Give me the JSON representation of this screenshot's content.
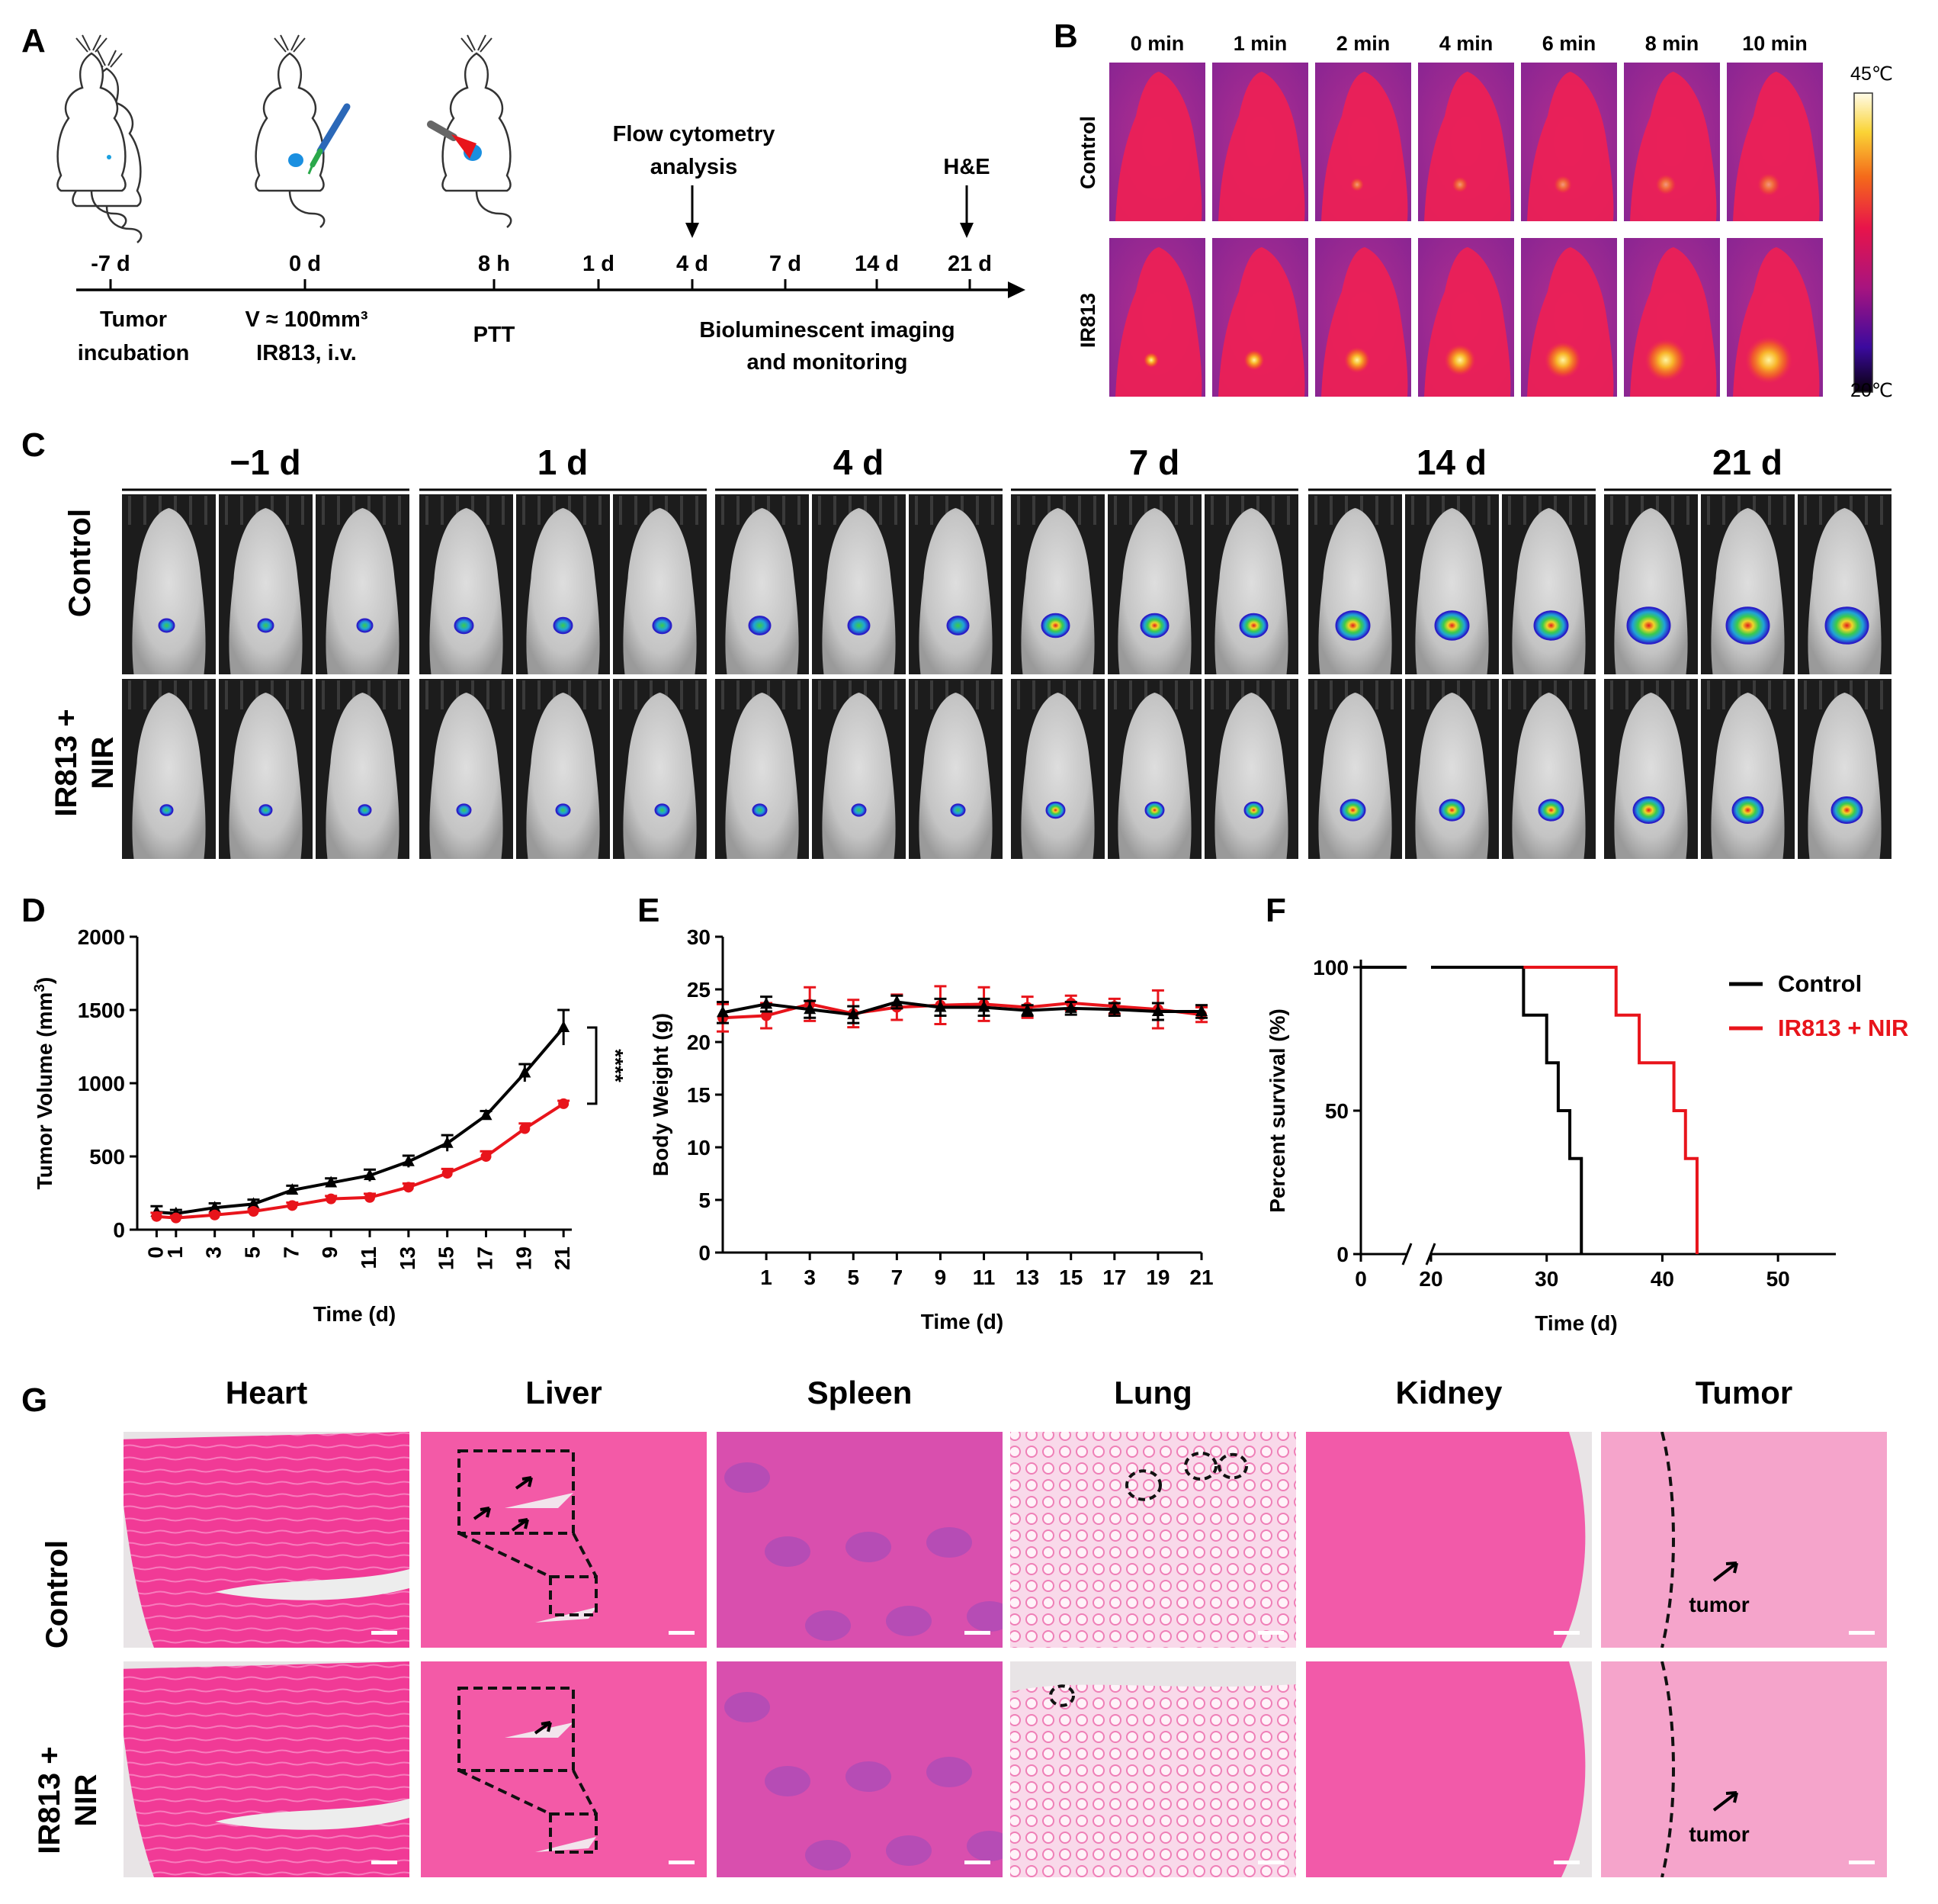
{
  "panels": {
    "A": "A",
    "B": "B",
    "C": "C",
    "D": "D",
    "E": "E",
    "F": "F",
    "G": "G"
  },
  "timeline": {
    "ticks": [
      "-7 d",
      "0 d",
      "8 h",
      "1 d",
      "4 d",
      "7 d",
      "14 d",
      "21 d"
    ],
    "tumor_incubation": [
      "Tumor",
      "incubation"
    ],
    "injection": [
      "V ≈ 100mm³",
      "IR813, i.v."
    ],
    "ptt": "PTT",
    "flow": [
      "Flow cytometry",
      "analysis"
    ],
    "he": "H&E",
    "biolum": [
      "Bioluminescent imaging",
      "and monitoring"
    ]
  },
  "thermal": {
    "times": [
      "0 min",
      "1 min",
      "2 min",
      "4 min",
      "6 min",
      "8 min",
      "10 min"
    ],
    "rows": [
      "Control",
      "IR813"
    ],
    "scale_max": "45℃",
    "scale_min": "20℃"
  },
  "biolum": {
    "days": [
      "−1 d",
      "1 d",
      "4 d",
      "7 d",
      "14 d",
      "21 d"
    ],
    "rows": [
      [
        "Control"
      ],
      [
        "IR813 +",
        "NIR"
      ]
    ]
  },
  "colors": {
    "control": "#000000",
    "treated": "#e8141b",
    "he_pink": "#f04c9e",
    "he_bg": "#f5a9cf"
  },
  "chart_data": [
    {
      "panel": "D",
      "type": "line",
      "title": "",
      "xlabel": "Time (d)",
      "ylabel": "Tumor Volume (mm3)",
      "ylabel_main": "Tumor Volume (mm",
      "ylabel_sup": "3",
      "ylabel_end": ")",
      "xlim": [
        -1,
        23
      ],
      "ylim": [
        0,
        2000
      ],
      "y_ticks": [
        0,
        500,
        1000,
        1500,
        2000
      ],
      "x": [
        0,
        1,
        3,
        5,
        7,
        9,
        11,
        13,
        15,
        17,
        19,
        21
      ],
      "series": [
        {
          "name": "Control",
          "values": [
            120,
            110,
            150,
            175,
            270,
            320,
            370,
            465,
            590,
            780,
            1070,
            1380
          ],
          "errors": [
            40,
            25,
            30,
            30,
            30,
            30,
            40,
            40,
            55,
            30,
            60,
            120
          ]
        },
        {
          "name": "IR813 + NIR",
          "values": [
            90,
            80,
            100,
            125,
            165,
            210,
            220,
            290,
            385,
            500,
            690,
            860
          ],
          "errors": [
            25,
            15,
            15,
            15,
            20,
            20,
            25,
            25,
            30,
            35,
            35,
            20
          ]
        }
      ],
      "annotation": "****"
    },
    {
      "panel": "E",
      "type": "line",
      "title": "",
      "xlabel": "Time (d)",
      "ylabel": "Body Weight (g)",
      "xlim": [
        -1,
        21
      ],
      "ylim": [
        0,
        30
      ],
      "y_ticks": [
        0,
        5,
        10,
        15,
        20,
        25,
        30
      ],
      "x": [
        -1,
        1,
        3,
        5,
        7,
        9,
        11,
        13,
        15,
        17,
        19,
        21
      ],
      "x_ticks": [
        1,
        3,
        5,
        7,
        9,
        11,
        13,
        15,
        17,
        19,
        21
      ],
      "series": [
        {
          "name": "Control",
          "values": [
            22.8,
            23.6,
            23.1,
            22.6,
            23.8,
            23.3,
            23.3,
            23.0,
            23.2,
            23.1,
            22.9,
            22.9
          ],
          "errors": [
            1.0,
            0.7,
            0.8,
            0.8,
            0.6,
            0.8,
            0.8,
            0.5,
            0.6,
            0.6,
            0.8,
            0.6
          ]
        },
        {
          "name": "IR813 + NIR",
          "values": [
            22.3,
            22.5,
            23.6,
            22.7,
            23.3,
            23.5,
            23.6,
            23.3,
            23.7,
            23.4,
            23.1,
            22.6
          ],
          "errors": [
            1.3,
            1.2,
            1.6,
            1.3,
            1.2,
            1.8,
            1.6,
            1.0,
            0.7,
            0.7,
            1.8,
            0.7
          ]
        }
      ]
    },
    {
      "panel": "F",
      "type": "line",
      "title": "",
      "xlabel": "Time (d)",
      "ylabel": "Percent survival (%)",
      "ylim": [
        0,
        100
      ],
      "y_ticks": [
        0,
        50,
        100
      ],
      "x_ticks": [
        0,
        20,
        30,
        40,
        50
      ],
      "axis_break": [
        5,
        20
      ],
      "series": [
        {
          "name": "Control",
          "steps": [
            [
              0,
              100
            ],
            [
              28,
              100
            ],
            [
              28,
              83.3
            ],
            [
              30,
              83.3
            ],
            [
              30,
              66.7
            ],
            [
              31,
              66.7
            ],
            [
              31,
              50
            ],
            [
              32,
              50
            ],
            [
              32,
              33.3
            ],
            [
              33,
              33.3
            ],
            [
              33,
              0
            ]
          ]
        },
        {
          "name": "IR813 + NIR",
          "steps": [
            [
              28,
              100
            ],
            [
              36,
              100
            ],
            [
              36,
              83.3
            ],
            [
              38,
              83.3
            ],
            [
              38,
              66.7
            ],
            [
              41,
              66.7
            ],
            [
              41,
              50
            ],
            [
              42,
              50
            ],
            [
              42,
              33.3
            ],
            [
              43,
              33.3
            ],
            [
              43,
              0
            ]
          ]
        }
      ],
      "legend": [
        "Control",
        "IR813 + NIR"
      ],
      "legend_position": "top-right"
    }
  ],
  "he": {
    "organs": [
      "Heart",
      "Liver",
      "Spleen",
      "Lung",
      "Kidney",
      "Tumor"
    ],
    "rows": [
      [
        "Control"
      ],
      [
        "IR813 +",
        "NIR"
      ]
    ],
    "tumor_label": "tumor"
  }
}
